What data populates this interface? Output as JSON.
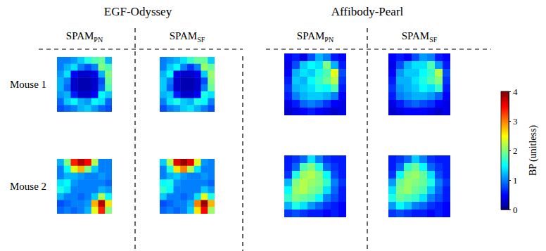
{
  "chart_data": {
    "type": "heatmap",
    "rows": [
      "Mouse 1",
      "Mouse 2"
    ],
    "groups": [
      {
        "title": "EGF-Odyssey",
        "columns": [
          {
            "label": "SPAM",
            "subscript": "PN",
            "mice": [
              [
                [
                  1.0,
                  1.0,
                  1.1,
                  1.3,
                  1.6,
                  1.8,
                  1.9,
                  1.2
                ],
                [
                  1.0,
                  1.2,
                  1.4,
                  1.0,
                  0.8,
                  1.0,
                  2.0,
                  1.8
                ],
                [
                  1.1,
                  1.4,
                  0.5,
                  0.3,
                  0.3,
                  0.4,
                  1.2,
                  2.0
                ],
                [
                  1.2,
                  1.0,
                  0.3,
                  0.2,
                  0.2,
                  0.3,
                  0.8,
                  1.9
                ],
                [
                  1.2,
                  0.9,
                  0.3,
                  0.2,
                  0.2,
                  0.3,
                  0.9,
                  1.8
                ],
                [
                  1.1,
                  1.2,
                  0.6,
                  0.3,
                  0.3,
                  0.5,
                  1.5,
                  1.3
                ],
                [
                  0.9,
                  1.3,
                  1.5,
                  1.2,
                  1.1,
                  1.5,
                  1.4,
                  0.9
                ],
                [
                  0.8,
                  0.9,
                  1.0,
                  1.2,
                  1.3,
                  1.1,
                  0.9,
                  0.8
                ]
              ],
              [
                [
                  1.2,
                  2.0,
                  3.4,
                  3.8,
                  3.5,
                  2.2,
                  1.0,
                  1.0
                ],
                [
                  1.0,
                  1.5,
                  2.4,
                  2.8,
                  2.0,
                  1.3,
                  1.0,
                  1.0
                ],
                [
                  1.0,
                  1.2,
                  1.2,
                  1.1,
                  1.0,
                  1.0,
                  1.1,
                  1.0
                ],
                [
                  1.4,
                  1.5,
                  1.1,
                  1.0,
                  1.0,
                  1.0,
                  1.0,
                  0.9
                ],
                [
                  1.6,
                  1.4,
                  1.0,
                  1.0,
                  1.0,
                  1.0,
                  1.2,
                  1.1
                ],
                [
                  1.2,
                  1.0,
                  1.0,
                  0.9,
                  1.0,
                  1.3,
                  2.2,
                  1.5
                ],
                [
                  0.8,
                  0.9,
                  1.0,
                  1.0,
                  1.1,
                  2.8,
                  3.8,
                  2.6
                ],
                [
                  0.9,
                  1.0,
                  0.9,
                  1.0,
                  1.2,
                  2.4,
                  3.4,
                  2.0
                ]
              ]
            ]
          },
          {
            "label": "SPAM",
            "subscript": "SF",
            "mice": [
              [
                [
                  1.0,
                  1.1,
                  1.2,
                  1.4,
                  1.7,
                  1.9,
                  1.9,
                  1.3
                ],
                [
                  1.0,
                  1.3,
                  1.5,
                  1.0,
                  0.7,
                  1.0,
                  2.1,
                  1.9
                ],
                [
                  1.2,
                  1.5,
                  0.4,
                  0.3,
                  0.3,
                  0.4,
                  1.3,
                  2.1
                ],
                [
                  1.3,
                  1.0,
                  0.3,
                  0.2,
                  0.2,
                  0.3,
                  0.8,
                  2.0
                ],
                [
                  1.3,
                  0.9,
                  0.3,
                  0.2,
                  0.2,
                  0.3,
                  1.0,
                  1.9
                ],
                [
                  1.2,
                  1.3,
                  0.6,
                  0.3,
                  0.3,
                  0.5,
                  1.6,
                  1.4
                ],
                [
                  1.0,
                  1.4,
                  1.6,
                  1.3,
                  1.2,
                  1.6,
                  1.5,
                  1.0
                ],
                [
                  0.8,
                  1.0,
                  1.1,
                  1.3,
                  1.4,
                  1.2,
                  1.0,
                  0.8
                ]
              ],
              [
                [
                  1.3,
                  2.2,
                  3.6,
                  3.9,
                  3.6,
                  2.4,
                  1.1,
                  1.0
                ],
                [
                  1.0,
                  1.6,
                  2.6,
                  3.0,
                  2.2,
                  1.4,
                  1.0,
                  1.0
                ],
                [
                  1.0,
                  1.2,
                  1.3,
                  1.1,
                  1.0,
                  1.0,
                  1.1,
                  1.0
                ],
                [
                  1.5,
                  1.6,
                  1.1,
                  1.0,
                  1.0,
                  1.0,
                  1.0,
                  0.9
                ],
                [
                  1.7,
                  1.5,
                  1.0,
                  1.0,
                  1.0,
                  1.0,
                  1.3,
                  1.1
                ],
                [
                  1.3,
                  1.0,
                  1.0,
                  0.9,
                  1.0,
                  1.4,
                  2.4,
                  1.6
                ],
                [
                  0.8,
                  0.9,
                  1.0,
                  1.0,
                  1.2,
                  3.0,
                  3.9,
                  2.8
                ],
                [
                  0.9,
                  1.0,
                  0.9,
                  1.0,
                  1.3,
                  2.6,
                  3.5,
                  2.1
                ]
              ]
            ]
          }
        ]
      },
      {
        "title": "Affibody-Pearl",
        "columns": [
          {
            "label": "SPAM",
            "subscript": "PN",
            "mice": [
              [
                [
                  0.5,
                  0.6,
                  0.4,
                  0.8,
                  1.2,
                  1.0,
                  0.6,
                  0.5
                ],
                [
                  0.4,
                  0.8,
                  1.3,
                  1.5,
                  1.4,
                  2.0,
                  1.2,
                  0.6
                ],
                [
                  0.5,
                  1.2,
                  1.4,
                  1.3,
                  1.6,
                  1.8,
                  2.4,
                  0.8
                ],
                [
                  0.6,
                  1.3,
                  1.2,
                  1.5,
                  1.7,
                  1.9,
                  2.2,
                  0.7
                ],
                [
                  0.7,
                  1.2,
                  1.3,
                  1.4,
                  1.6,
                  1.5,
                  1.8,
                  0.6
                ],
                [
                  0.6,
                  1.0,
                  1.2,
                  1.3,
                  1.3,
                  1.2,
                  1.0,
                  0.5
                ],
                [
                  0.4,
                  0.6,
                  0.9,
                  1.0,
                  0.9,
                  0.7,
                  0.5,
                  0.4
                ],
                [
                  0.3,
                  0.4,
                  0.5,
                  0.6,
                  0.5,
                  0.4,
                  0.3,
                  0.4
                ]
              ],
              [
                [
                  0.6,
                  0.7,
                  0.9,
                  1.4,
                  1.0,
                  0.7,
                  0.6,
                  0.6
                ],
                [
                  0.6,
                  0.9,
                  1.8,
                  2.0,
                  1.6,
                  0.9,
                  0.7,
                  0.6
                ],
                [
                  0.7,
                  1.6,
                  2.1,
                  2.2,
                  2.0,
                  1.5,
                  0.8,
                  0.6
                ],
                [
                  1.2,
                  2.0,
                  2.2,
                  2.1,
                  2.0,
                  1.7,
                  1.0,
                  0.7
                ],
                [
                  1.5,
                  2.1,
                  2.2,
                  2.0,
                  1.9,
                  1.4,
                  0.9,
                  0.6
                ],
                [
                  1.7,
                  2.0,
                  1.9,
                  1.8,
                  1.5,
                  1.0,
                  0.8,
                  0.6
                ],
                [
                  1.2,
                  1.6,
                  1.4,
                  1.1,
                  0.9,
                  0.7,
                  0.6,
                  0.5
                ],
                [
                  0.7,
                  0.8,
                  0.7,
                  0.6,
                  0.6,
                  0.5,
                  0.6,
                  0.5
                ]
              ]
            ]
          },
          {
            "label": "SPAM",
            "subscript": "SF",
            "mice": [
              [
                [
                  0.5,
                  0.6,
                  0.5,
                  0.8,
                  1.1,
                  1.0,
                  0.6,
                  0.5
                ],
                [
                  0.4,
                  0.8,
                  1.2,
                  1.4,
                  1.4,
                  1.8,
                  1.1,
                  0.6
                ],
                [
                  0.5,
                  1.1,
                  1.3,
                  1.3,
                  1.5,
                  1.7,
                  2.2,
                  0.8
                ],
                [
                  0.6,
                  1.2,
                  1.2,
                  1.4,
                  1.6,
                  1.8,
                  2.0,
                  0.7
                ],
                [
                  0.7,
                  1.1,
                  1.2,
                  1.3,
                  1.5,
                  1.4,
                  1.7,
                  0.6
                ],
                [
                  0.6,
                  1.0,
                  1.1,
                  1.2,
                  1.2,
                  1.1,
                  0.9,
                  0.5
                ],
                [
                  0.4,
                  0.6,
                  0.8,
                  0.9,
                  0.8,
                  0.7,
                  0.5,
                  0.4
                ],
                [
                  0.3,
                  0.4,
                  0.5,
                  0.5,
                  0.5,
                  0.4,
                  0.3,
                  0.4
                ]
              ],
              [
                [
                  0.6,
                  0.7,
                  0.9,
                  1.3,
                  1.0,
                  0.7,
                  0.6,
                  0.6
                ],
                [
                  0.6,
                  0.9,
                  1.7,
                  1.9,
                  1.5,
                  0.9,
                  0.7,
                  0.6
                ],
                [
                  0.7,
                  1.5,
                  2.0,
                  2.1,
                  1.9,
                  1.4,
                  0.8,
                  0.6
                ],
                [
                  1.1,
                  1.9,
                  2.1,
                  2.0,
                  1.9,
                  1.6,
                  1.0,
                  0.7
                ],
                [
                  1.4,
                  2.0,
                  2.1,
                  1.9,
                  1.8,
                  1.3,
                  0.9,
                  0.6
                ],
                [
                  1.6,
                  1.9,
                  1.8,
                  1.7,
                  1.4,
                  1.0,
                  0.8,
                  0.6
                ],
                [
                  1.1,
                  1.5,
                  1.3,
                  1.0,
                  0.9,
                  0.7,
                  0.6,
                  0.5
                ],
                [
                  0.7,
                  0.8,
                  0.7,
                  0.6,
                  0.6,
                  0.5,
                  0.6,
                  0.5
                ]
              ]
            ]
          }
        ]
      }
    ],
    "colorbar": {
      "label": "BP (unitless)",
      "range": [
        0,
        4
      ],
      "ticks": [
        0,
        1,
        2,
        3,
        4
      ]
    }
  }
}
